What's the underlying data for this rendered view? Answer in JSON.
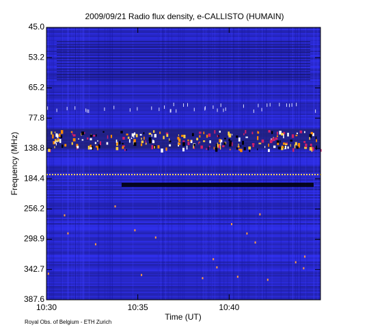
{
  "chart_data": {
    "type": "spectrogram",
    "title": "2009/09/21  Radio flux density, e-CALLISTO (HUMAIN)",
    "x_label": "Time (UT)",
    "y_label": "Frequency (MHz)",
    "footer": "Royal Obs. of Belgium - ETH Zurich",
    "xlim": [
      630,
      645
    ],
    "xticks": [
      {
        "value": 630,
        "label": "10:30"
      },
      {
        "value": 635,
        "label": "10:35"
      },
      {
        "value": 640,
        "label": "10:40"
      }
    ],
    "ylim": [
      45,
      387.6
    ],
    "yticks": [
      {
        "value": 45,
        "label": "45.0"
      },
      53.2,
      65.2,
      77.8,
      138.8,
      184.4,
      256.2,
      298.9,
      342.7,
      387.6
    ]
  }
}
